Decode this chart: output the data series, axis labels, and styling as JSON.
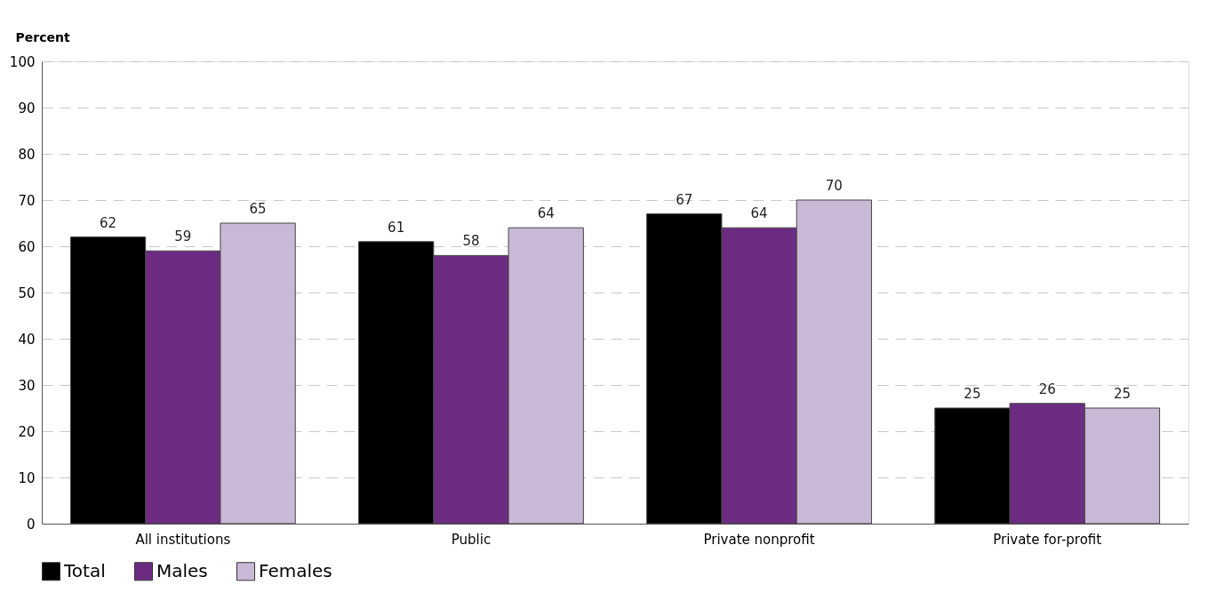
{
  "chart_data": {
    "type": "bar",
    "ylabel": "Percent",
    "categories": [
      "All institutions",
      "Public",
      "Private nonprofit",
      "Private for-profit"
    ],
    "series": [
      {
        "name": "Total",
        "color": "#000000",
        "values": [
          62,
          61,
          67,
          25
        ]
      },
      {
        "name": "Males",
        "color": "#6b2c82",
        "values": [
          59,
          58,
          64,
          26
        ]
      },
      {
        "name": "Females",
        "color": "#c9b8d6",
        "values": [
          65,
          64,
          70,
          25
        ]
      }
    ],
    "ylim": [
      0,
      100
    ],
    "yticks": [
      0,
      10,
      20,
      30,
      40,
      50,
      60,
      70,
      80,
      90,
      100
    ],
    "grid": "y",
    "legend": "bottom",
    "data_labels": true
  }
}
